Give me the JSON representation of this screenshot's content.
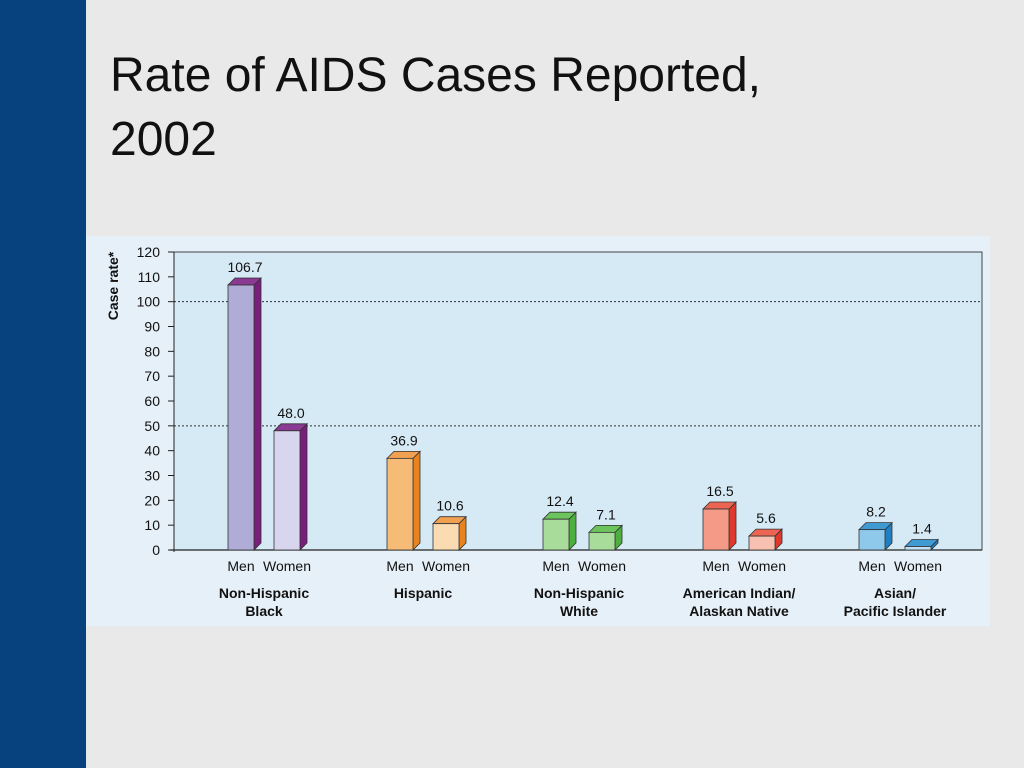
{
  "slide": {
    "title_line1": "Rate of AIDS Cases Reported,",
    "title_line2": "2002"
  },
  "colors": {
    "sidebar": "#07427e",
    "background": "#e9e9e9",
    "plot_area": "#d6eaf6",
    "panel": "#e6f0f8"
  },
  "chart_data": {
    "type": "bar",
    "title": "Rate of AIDS Cases Reported, 2002",
    "ylabel": "Case rate*",
    "xlabel": "",
    "ylim": [
      0,
      120
    ],
    "yticks": [
      0,
      10,
      20,
      30,
      40,
      50,
      60,
      70,
      80,
      90,
      100,
      110,
      120
    ],
    "reference_lines": [
      50,
      100
    ],
    "groups": [
      {
        "name_lines": [
          "Non-Hispanic",
          "Black"
        ],
        "bars": [
          {
            "label": "Men",
            "value": 106.7,
            "display": "106.7",
            "front": "#b0acd8",
            "side": "#7a1e7e",
            "top": "#8a3a92"
          },
          {
            "label": "Women",
            "value": 48.0,
            "display": "48.0",
            "front": "#d8d6ee",
            "side": "#7a1e7e",
            "top": "#8a3a92"
          }
        ]
      },
      {
        "name_lines": [
          "Hispanic"
        ],
        "bars": [
          {
            "label": "Men",
            "value": 36.9,
            "display": "36.9",
            "front": "#f7bb78",
            "side": "#e8841f",
            "top": "#f0a050"
          },
          {
            "label": "Women",
            "value": 10.6,
            "display": "10.6",
            "front": "#fbdcb2",
            "side": "#e8841f",
            "top": "#f0a050"
          }
        ]
      },
      {
        "name_lines": [
          "Non-Hispanic",
          "White"
        ],
        "bars": [
          {
            "label": "Men",
            "value": 12.4,
            "display": "12.4",
            "front": "#a8dc9a",
            "side": "#4caf3e",
            "top": "#6cc45c"
          },
          {
            "label": "Women",
            "value": 7.1,
            "display": "7.1",
            "front": "#a8dc9a",
            "side": "#4caf3e",
            "top": "#6cc45c"
          }
        ]
      },
      {
        "name_lines": [
          "American Indian/",
          "Alaskan Native"
        ],
        "bars": [
          {
            "label": "Men",
            "value": 16.5,
            "display": "16.5",
            "front": "#f59a86",
            "side": "#e0382c",
            "top": "#ec6452"
          },
          {
            "label": "Women",
            "value": 5.6,
            "display": "5.6",
            "front": "#f8c0b0",
            "side": "#e0382c",
            "top": "#ec6452"
          }
        ]
      },
      {
        "name_lines": [
          "Asian/",
          "Pacific Islander"
        ],
        "bars": [
          {
            "label": "Men",
            "value": 8.2,
            "display": "8.2",
            "front": "#8ec8ea",
            "side": "#1f7fc2",
            "top": "#3f9ad4"
          },
          {
            "label": "Women",
            "value": 1.4,
            "display": "1.4",
            "front": "#bfe0f4",
            "side": "#1f7fc2",
            "top": "#3f9ad4"
          }
        ]
      }
    ]
  }
}
